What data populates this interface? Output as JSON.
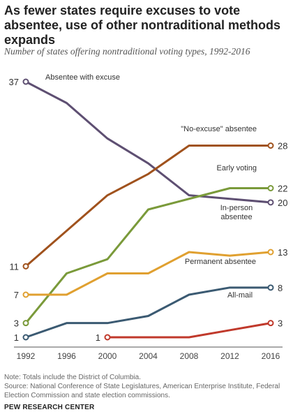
{
  "title": "As fewer states require excuses to vote absentee, use of other nontraditional methods expands",
  "subtitle": "Number of states offering nontraditional voting types, 1992-2016",
  "note": "Note: Totals include the District of Columbia.",
  "source": "Source: National Conference of State Legislatures, American Enterprise Institute, Federal Election Commission and state election commissions.",
  "org": "PEW RESEARCH CENTER",
  "chart_data": {
    "type": "line",
    "x": [
      1992,
      1996,
      2000,
      2004,
      2008,
      2012,
      2016
    ],
    "xlabels": [
      "1992",
      "1996",
      "2000",
      "2004",
      "2008",
      "2012",
      "2016"
    ],
    "ylim": [
      1,
      37
    ],
    "grid": false,
    "series": [
      {
        "name": "Absentee with excuse",
        "color": "#5e4f72",
        "values": [
          37,
          34,
          29,
          25.5,
          21,
          20.5,
          20
        ],
        "start_label": "37",
        "end_label": "20"
      },
      {
        "name": "\"No-excuse\" absentee",
        "color": "#a0521d",
        "values": [
          11,
          16,
          21,
          24,
          28,
          28,
          28
        ],
        "start_label": "11",
        "end_label": "28"
      },
      {
        "name": "Early voting",
        "color": "#7a9a3a",
        "values": [
          3,
          10,
          12,
          19,
          20.5,
          22,
          22
        ],
        "start_label": "3",
        "end_label": "22"
      },
      {
        "name": "In-person absentee",
        "color": "#e0a030",
        "values": [
          7,
          7,
          10,
          10,
          13,
          12.5,
          13
        ],
        "start_label": "7",
        "end_label": "13"
      },
      {
        "name": "Permanent absentee",
        "color": "#3b5a72",
        "values": [
          1,
          3,
          3,
          4,
          7,
          8,
          8
        ],
        "start_label": "1",
        "end_label": "8"
      },
      {
        "name": "All-mail",
        "color": "#c0392b",
        "values": [
          null,
          null,
          1,
          1,
          1,
          2,
          3
        ],
        "start_label": "1",
        "end_label": "3"
      }
    ]
  }
}
